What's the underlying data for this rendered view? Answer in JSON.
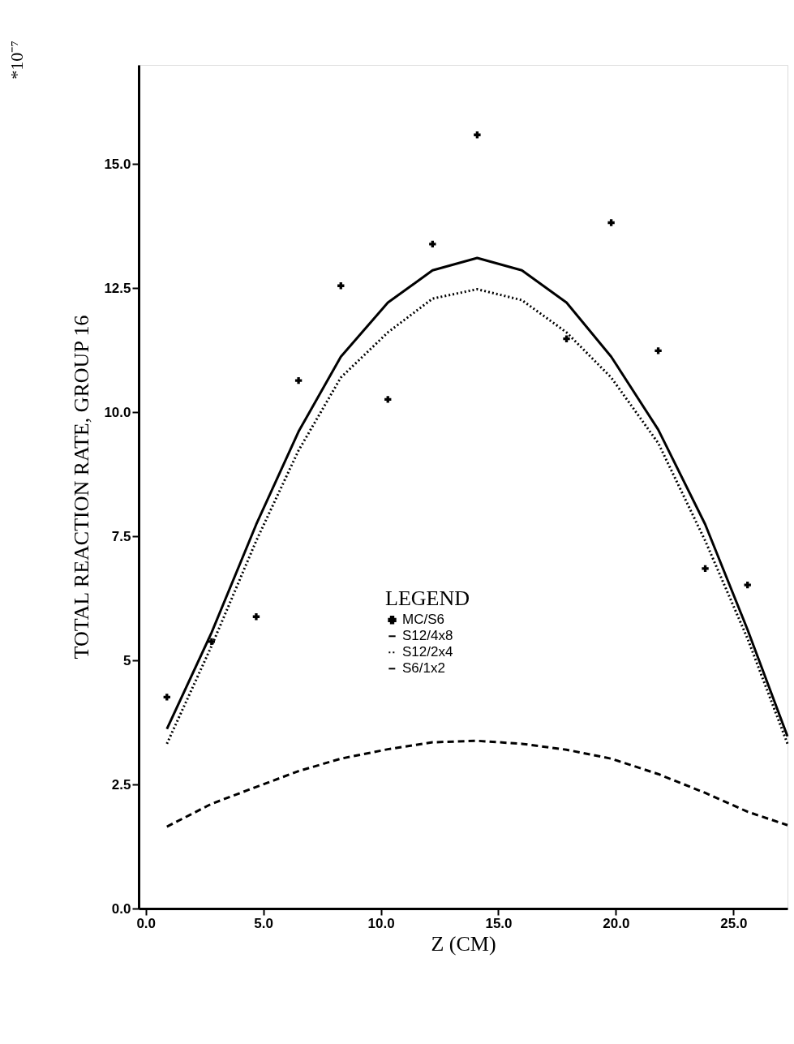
{
  "chart_data": {
    "type": "line",
    "xlabel": "Z (CM)",
    "ylabel": "TOTAL REACTION RATE, GROUP 16",
    "legend_title": "LEGEND",
    "annotations": [
      "*10⁻⁷"
    ],
    "xlim": [
      -0.3,
      27.3
    ],
    "xticks": [
      {
        "value": 0,
        "label": "0.0"
      },
      {
        "value": 5,
        "label": "5.0"
      },
      {
        "value": 10,
        "label": "10.0"
      },
      {
        "value": 15,
        "label": "15.0"
      },
      {
        "value": 20,
        "label": "20.0"
      },
      {
        "value": 25,
        "label": "25.0"
      }
    ],
    "ylim": [
      0,
      17
    ],
    "yticks": [
      {
        "value": 0,
        "label": "0.0"
      },
      2.5,
      5,
      7.5,
      {
        "value": 10,
        "label": "10.0"
      },
      12.5,
      {
        "value": 15,
        "label": "15.0"
      }
    ],
    "grid": false,
    "legend": "center",
    "series": [
      {
        "name": "MC/S6",
        "type": "scatter",
        "marker": "cross",
        "color": "#000000",
        "x": [
          0.9,
          2.8,
          4.7,
          6.5,
          8.3,
          10.3,
          12.2,
          14.1,
          17.9,
          19.8,
          21.8,
          23.8,
          25.6
        ],
        "values": [
          4.26,
          5.38,
          5.88,
          10.64,
          12.55,
          10.26,
          13.39,
          15.59,
          11.48,
          13.82,
          11.24,
          6.85,
          6.52
        ]
      },
      {
        "name": "S12/4x8",
        "line_style": "solid",
        "color": "#000000",
        "x": [
          0.9,
          2.8,
          4.7,
          6.5,
          8.3,
          10.3,
          12.2,
          14.1,
          16.0,
          17.9,
          19.8,
          21.8,
          23.8,
          25.6,
          27.3
        ],
        "values": [
          3.62,
          5.56,
          7.74,
          9.61,
          11.12,
          12.21,
          12.86,
          13.11,
          12.86,
          12.21,
          11.12,
          9.65,
          7.74,
          5.62,
          3.47
        ]
      },
      {
        "name": "S12/2x4",
        "line_style": "dotted",
        "color": "#000000",
        "x": [
          0.9,
          2.8,
          4.7,
          6.5,
          8.3,
          10.3,
          12.2,
          14.1,
          16.0,
          17.9,
          19.8,
          21.8,
          23.8,
          25.6,
          27.3
        ],
        "values": [
          3.32,
          5.29,
          7.41,
          9.23,
          10.7,
          11.61,
          12.29,
          12.48,
          12.26,
          11.61,
          10.7,
          9.38,
          7.41,
          5.44,
          3.32
        ]
      },
      {
        "name": "S6/1x2",
        "line_style": "dashed",
        "color": "#000000",
        "x": [
          0.9,
          2.8,
          4.7,
          6.5,
          8.3,
          10.3,
          12.2,
          14.1,
          16.0,
          17.9,
          19.8,
          21.8,
          23.8,
          25.6,
          27.3
        ],
        "values": [
          1.65,
          2.11,
          2.45,
          2.77,
          3.02,
          3.21,
          3.35,
          3.38,
          3.32,
          3.2,
          3.02,
          2.71,
          2.33,
          1.95,
          1.68
        ]
      }
    ]
  }
}
